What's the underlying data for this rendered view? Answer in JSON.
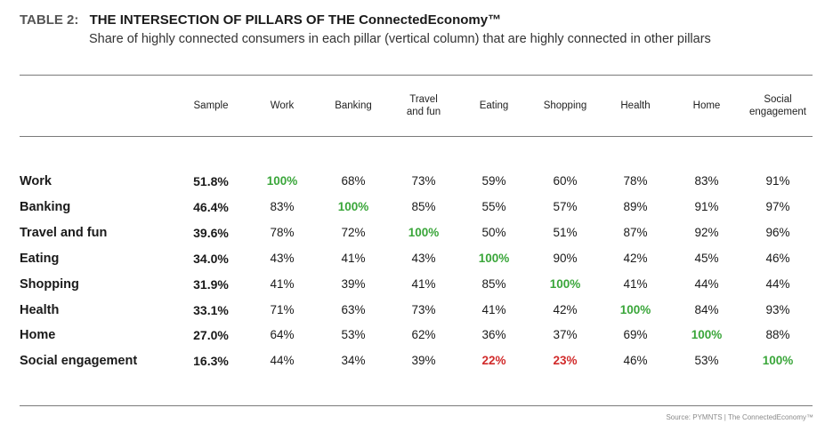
{
  "header": {
    "label": "TABLE 2:",
    "title": "THE INTERSECTION OF PILLARS OF THE ConnectedEconomy™",
    "subtitle": "Share of highly connected consumers in each pillar (vertical column) that are highly connected in other pillars"
  },
  "columns": [
    "Sample",
    "Work",
    "Banking",
    "Travel\nand fun",
    "Eating",
    "Shopping",
    "Health",
    "Home",
    "Social\nengagement"
  ],
  "rows": [
    {
      "label": "Work",
      "values": [
        "51.8%",
        "100%",
        "68%",
        "73%",
        "59%",
        "60%",
        "78%",
        "83%",
        "91%"
      ]
    },
    {
      "label": "Banking",
      "values": [
        "46.4%",
        "83%",
        "100%",
        "85%",
        "55%",
        "57%",
        "89%",
        "91%",
        "97%"
      ]
    },
    {
      "label": "Travel and fun",
      "values": [
        "39.6%",
        "78%",
        "72%",
        "100%",
        "50%",
        "51%",
        "87%",
        "92%",
        "96%"
      ]
    },
    {
      "label": "Eating",
      "values": [
        "34.0%",
        "43%",
        "41%",
        "43%",
        "100%",
        "90%",
        "42%",
        "45%",
        "46%"
      ]
    },
    {
      "label": "Shopping",
      "values": [
        "31.9%",
        "41%",
        "39%",
        "41%",
        "85%",
        "100%",
        "41%",
        "44%",
        "44%"
      ]
    },
    {
      "label": "Health",
      "values": [
        "33.1%",
        "71%",
        "63%",
        "73%",
        "41%",
        "42%",
        "100%",
        "84%",
        "93%"
      ]
    },
    {
      "label": "Home",
      "values": [
        "27.0%",
        "64%",
        "53%",
        "62%",
        "36%",
        "37%",
        "69%",
        "100%",
        "88%"
      ]
    },
    {
      "label": "Social engagement",
      "values": [
        "16.3%",
        "44%",
        "34%",
        "39%",
        "22%",
        "23%",
        "46%",
        "53%",
        "100%"
      ]
    }
  ],
  "low_cells": [
    [
      7,
      4
    ],
    [
      7,
      5
    ]
  ],
  "colors": {
    "highlight": "#3aa63a",
    "low": "#d12b2b"
  },
  "source": "Source: PYMNTS | The ConnectedEconomy™"
}
